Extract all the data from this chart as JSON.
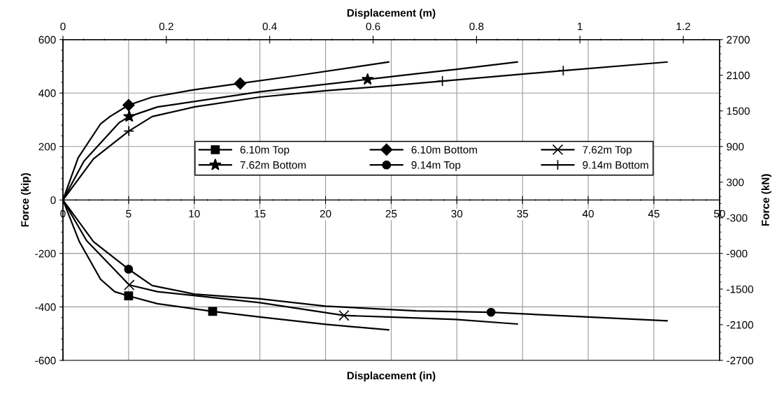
{
  "chart_data": {
    "type": "line",
    "xlabel": "Displacement (in)",
    "ylabel": "Force (kip)",
    "x2label": "Displacement (m)",
    "y2label": "Force (kN)",
    "xlim": [
      0,
      50
    ],
    "xticks": [
      0,
      5,
      10,
      15,
      20,
      25,
      30,
      35,
      40,
      45,
      50
    ],
    "ylim": [
      -600,
      600
    ],
    "yticks": [
      -600,
      -400,
      -200,
      0,
      200,
      400,
      600
    ],
    "x2lim": [
      0,
      1.27
    ],
    "x2ticks": [
      0,
      0.2,
      0.4,
      0.6,
      0.8,
      1,
      1.2
    ],
    "y2lim": [
      -2700,
      2700
    ],
    "y2ticks": [
      -2700,
      -2100,
      -1500,
      -900,
      -300,
      300,
      900,
      1500,
      2100,
      2700
    ],
    "grid": true,
    "legend": "center",
    "line_style": "solid",
    "series": [
      {
        "name": "6.10m Top",
        "color": "#000000",
        "x": [
          0,
          1.25,
          2.87,
          3.94,
          5,
          7.2,
          11.4,
          15,
          20,
          24.8
        ],
        "values": [
          0,
          -156,
          -297,
          -343,
          -359,
          -388,
          -417,
          -438,
          -465,
          -486
        ]
      },
      {
        "name": "6.10m Bottom",
        "color": "#000000",
        "x": [
          0,
          1.16,
          2.87,
          3.58,
          5,
          6.8,
          9.95,
          13.5,
          17.9,
          24.8
        ],
        "values": [
          0,
          158,
          285,
          312,
          355,
          385,
          412,
          436,
          466,
          516
        ]
      },
      {
        "name": "7.62m Top",
        "color": "#000000",
        "x": [
          0,
          1.8,
          5.05,
          7.2,
          15,
          21.4,
          24.8,
          29.9,
          34.6
        ],
        "values": [
          0,
          -152,
          -318,
          -343,
          -384,
          -432,
          -438,
          -447,
          -464
        ]
      },
      {
        "name": "7.62m Bottom",
        "color": "#000000",
        "x": [
          0,
          1.6,
          4.3,
          5.05,
          7.2,
          15,
          23.2,
          26.9,
          29.8,
          34.6
        ],
        "values": [
          0,
          145,
          290,
          312,
          348,
          405,
          451,
          472,
          488,
          516
        ]
      },
      {
        "name": "9.14m Top",
        "color": "#000000",
        "x": [
          0,
          2.33,
          5,
          6.8,
          10,
          15,
          20,
          26.9,
          32.6,
          40,
          46
        ],
        "values": [
          0,
          -156,
          -259,
          -320,
          -352,
          -370,
          -397,
          -415,
          -420,
          -438,
          -452
        ]
      },
      {
        "name": "9.14m Bottom",
        "color": "#000000",
        "x": [
          0,
          2.33,
          5.02,
          6.8,
          10,
          15,
          20,
          24.8,
          28.9,
          38.1,
          46
        ],
        "values": [
          0,
          154,
          258,
          312,
          348,
          385,
          409,
          427,
          445,
          484,
          516
        ]
      },
      {
        "type": "scatter",
        "marker": "square",
        "color": "#000000",
        "x": [
          5,
          11.4
        ],
        "values": [
          -359,
          -417
        ]
      },
      {
        "type": "scatter",
        "marker": "diamond",
        "color": "#000000",
        "x": [
          5,
          13.5
        ],
        "values": [
          355,
          436
        ]
      },
      {
        "type": "scatter",
        "marker": "cross",
        "color": "#000000",
        "x": [
          5.05,
          21.4
        ],
        "values": [
          -318,
          -432
        ]
      },
      {
        "type": "scatter",
        "marker": "star",
        "color": "#000000",
        "x": [
          5.05,
          23.2
        ],
        "values": [
          312,
          451
        ]
      },
      {
        "type": "scatter",
        "marker": "circle",
        "color": "#000000",
        "x": [
          5,
          32.6
        ],
        "values": [
          -259,
          -420
        ]
      },
      {
        "type": "scatter",
        "marker": "plus",
        "color": "#000000",
        "x": [
          5.02,
          28.9,
          38.1
        ],
        "values": [
          258,
          445,
          484
        ]
      }
    ]
  }
}
